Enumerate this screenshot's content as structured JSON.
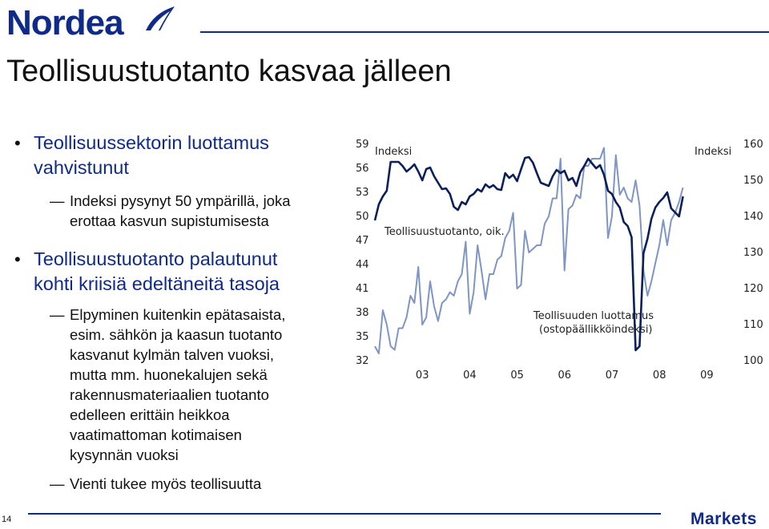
{
  "brand": {
    "logo_text": "Nordea",
    "footer_label": "Markets",
    "page_number": "14",
    "color": "#0e2a8a"
  },
  "slide": {
    "title": "Teollisuustuotanto kasvaa jälleen",
    "bullets": [
      {
        "lines": [
          "Teollisuussektorin luottamus",
          "vahvistunut"
        ],
        "subs": [
          {
            "lines": [
              "Indeksi pysynyt 50 ympärillä, joka",
              "erottaa kasvun supistumisesta"
            ]
          }
        ]
      },
      {
        "lines": [
          "Teollisuustuotanto palautunut",
          "kohti kriisiä edeltäneitä tasoja"
        ],
        "subs": [
          {
            "lines": [
              "Elpyminen kuitenkin epätasaista,",
              "esim. sähkön ja kaasun tuotanto",
              "kasvanut kylmän talven vuoksi,",
              "mutta mm. huonekalujen sekä",
              "rakennusmateriaalien tuotanto",
              "edelleen erittäin heikkoa",
              "vaatimattoman kotimaisen",
              "kysynnän vuoksi"
            ]
          },
          {
            "lines": [
              "Vienti tukee myös teollisuutta"
            ]
          }
        ]
      }
    ]
  },
  "chart_data": {
    "type": "line",
    "x_tick_labels": [
      "03",
      "04",
      "05",
      "06",
      "07",
      "08",
      "09"
    ],
    "left_axis": {
      "label": "Indeksi",
      "ticks": [
        59,
        56,
        53,
        50,
        47,
        44,
        41,
        38,
        35,
        32
      ],
      "ylim": [
        32,
        59
      ]
    },
    "right_axis": {
      "label": "Indeksi",
      "ticks": [
        160,
        150,
        140,
        130,
        120,
        110,
        100
      ],
      "ylim": [
        100,
        160
      ]
    },
    "x_range": [
      2002.5,
      2010.0
    ],
    "grid": false,
    "series": [
      {
        "name": "Teollisuuden luottamus (ostopäällikköindeksi)",
        "axis": "left",
        "color": "#0b1f5c",
        "x_start": 2002.5,
        "x_step": 0.0833,
        "values": [
          49.5,
          51.5,
          52.5,
          53.2,
          56.8,
          56.8,
          56.8,
          56.3,
          55.6,
          56.0,
          56.5,
          55.6,
          54.5,
          55.9,
          56.1,
          55.0,
          54.2,
          53.4,
          53.5,
          52.8,
          51.2,
          50.8,
          51.8,
          51.5,
          52.5,
          52.8,
          53.4,
          53.1,
          54.0,
          53.6,
          53.9,
          53.4,
          53.3,
          55.4,
          54.8,
          55.2,
          54.4,
          55.9,
          57.3,
          57.4,
          56.7,
          55.4,
          54.2,
          54.0,
          53.8,
          55.0,
          55.8,
          55.4,
          55.7,
          54.5,
          54.8,
          53.8,
          55.5,
          56.3,
          57.2,
          56.6,
          56.0,
          56.4,
          55.2,
          53.2,
          52.8,
          51.8,
          51.1,
          49.3,
          48.8,
          47.4,
          33.3,
          33.8,
          45.4,
          47.2,
          49.7,
          51.1,
          51.8,
          52.3,
          53.0,
          51.0,
          50.5,
          50.0,
          52.5
        ]
      },
      {
        "name": "Teollisuustuotanto, oik.",
        "axis": "right",
        "color": "#7f95c4",
        "x_start": 2002.5,
        "x_step": 0.0833,
        "values": [
          104,
          102,
          114,
          110,
          104,
          103,
          109,
          109,
          112,
          118,
          116,
          126,
          110,
          112,
          122,
          115,
          111,
          116,
          117,
          119,
          118,
          122,
          124,
          133,
          113,
          119,
          132,
          125,
          117,
          124,
          124,
          128,
          129,
          134,
          136,
          141,
          120,
          121,
          136,
          130,
          131,
          132,
          132,
          138,
          140,
          145,
          145,
          156,
          125,
          142,
          143,
          146,
          145,
          154,
          154,
          156,
          156,
          156,
          159,
          134,
          140,
          157,
          146,
          148,
          145,
          144,
          150,
          143,
          125,
          118,
          122,
          127,
          132,
          139,
          132,
          139,
          141,
          144,
          148
        ]
      }
    ],
    "annotations": [
      {
        "text": "Teollisuustuotanto, oik.",
        "series": 1
      },
      {
        "text": "Teollisuuden luottamus",
        "series": 0
      },
      {
        "text": "(ostopäällikköindeksi)",
        "series": 0
      }
    ]
  }
}
